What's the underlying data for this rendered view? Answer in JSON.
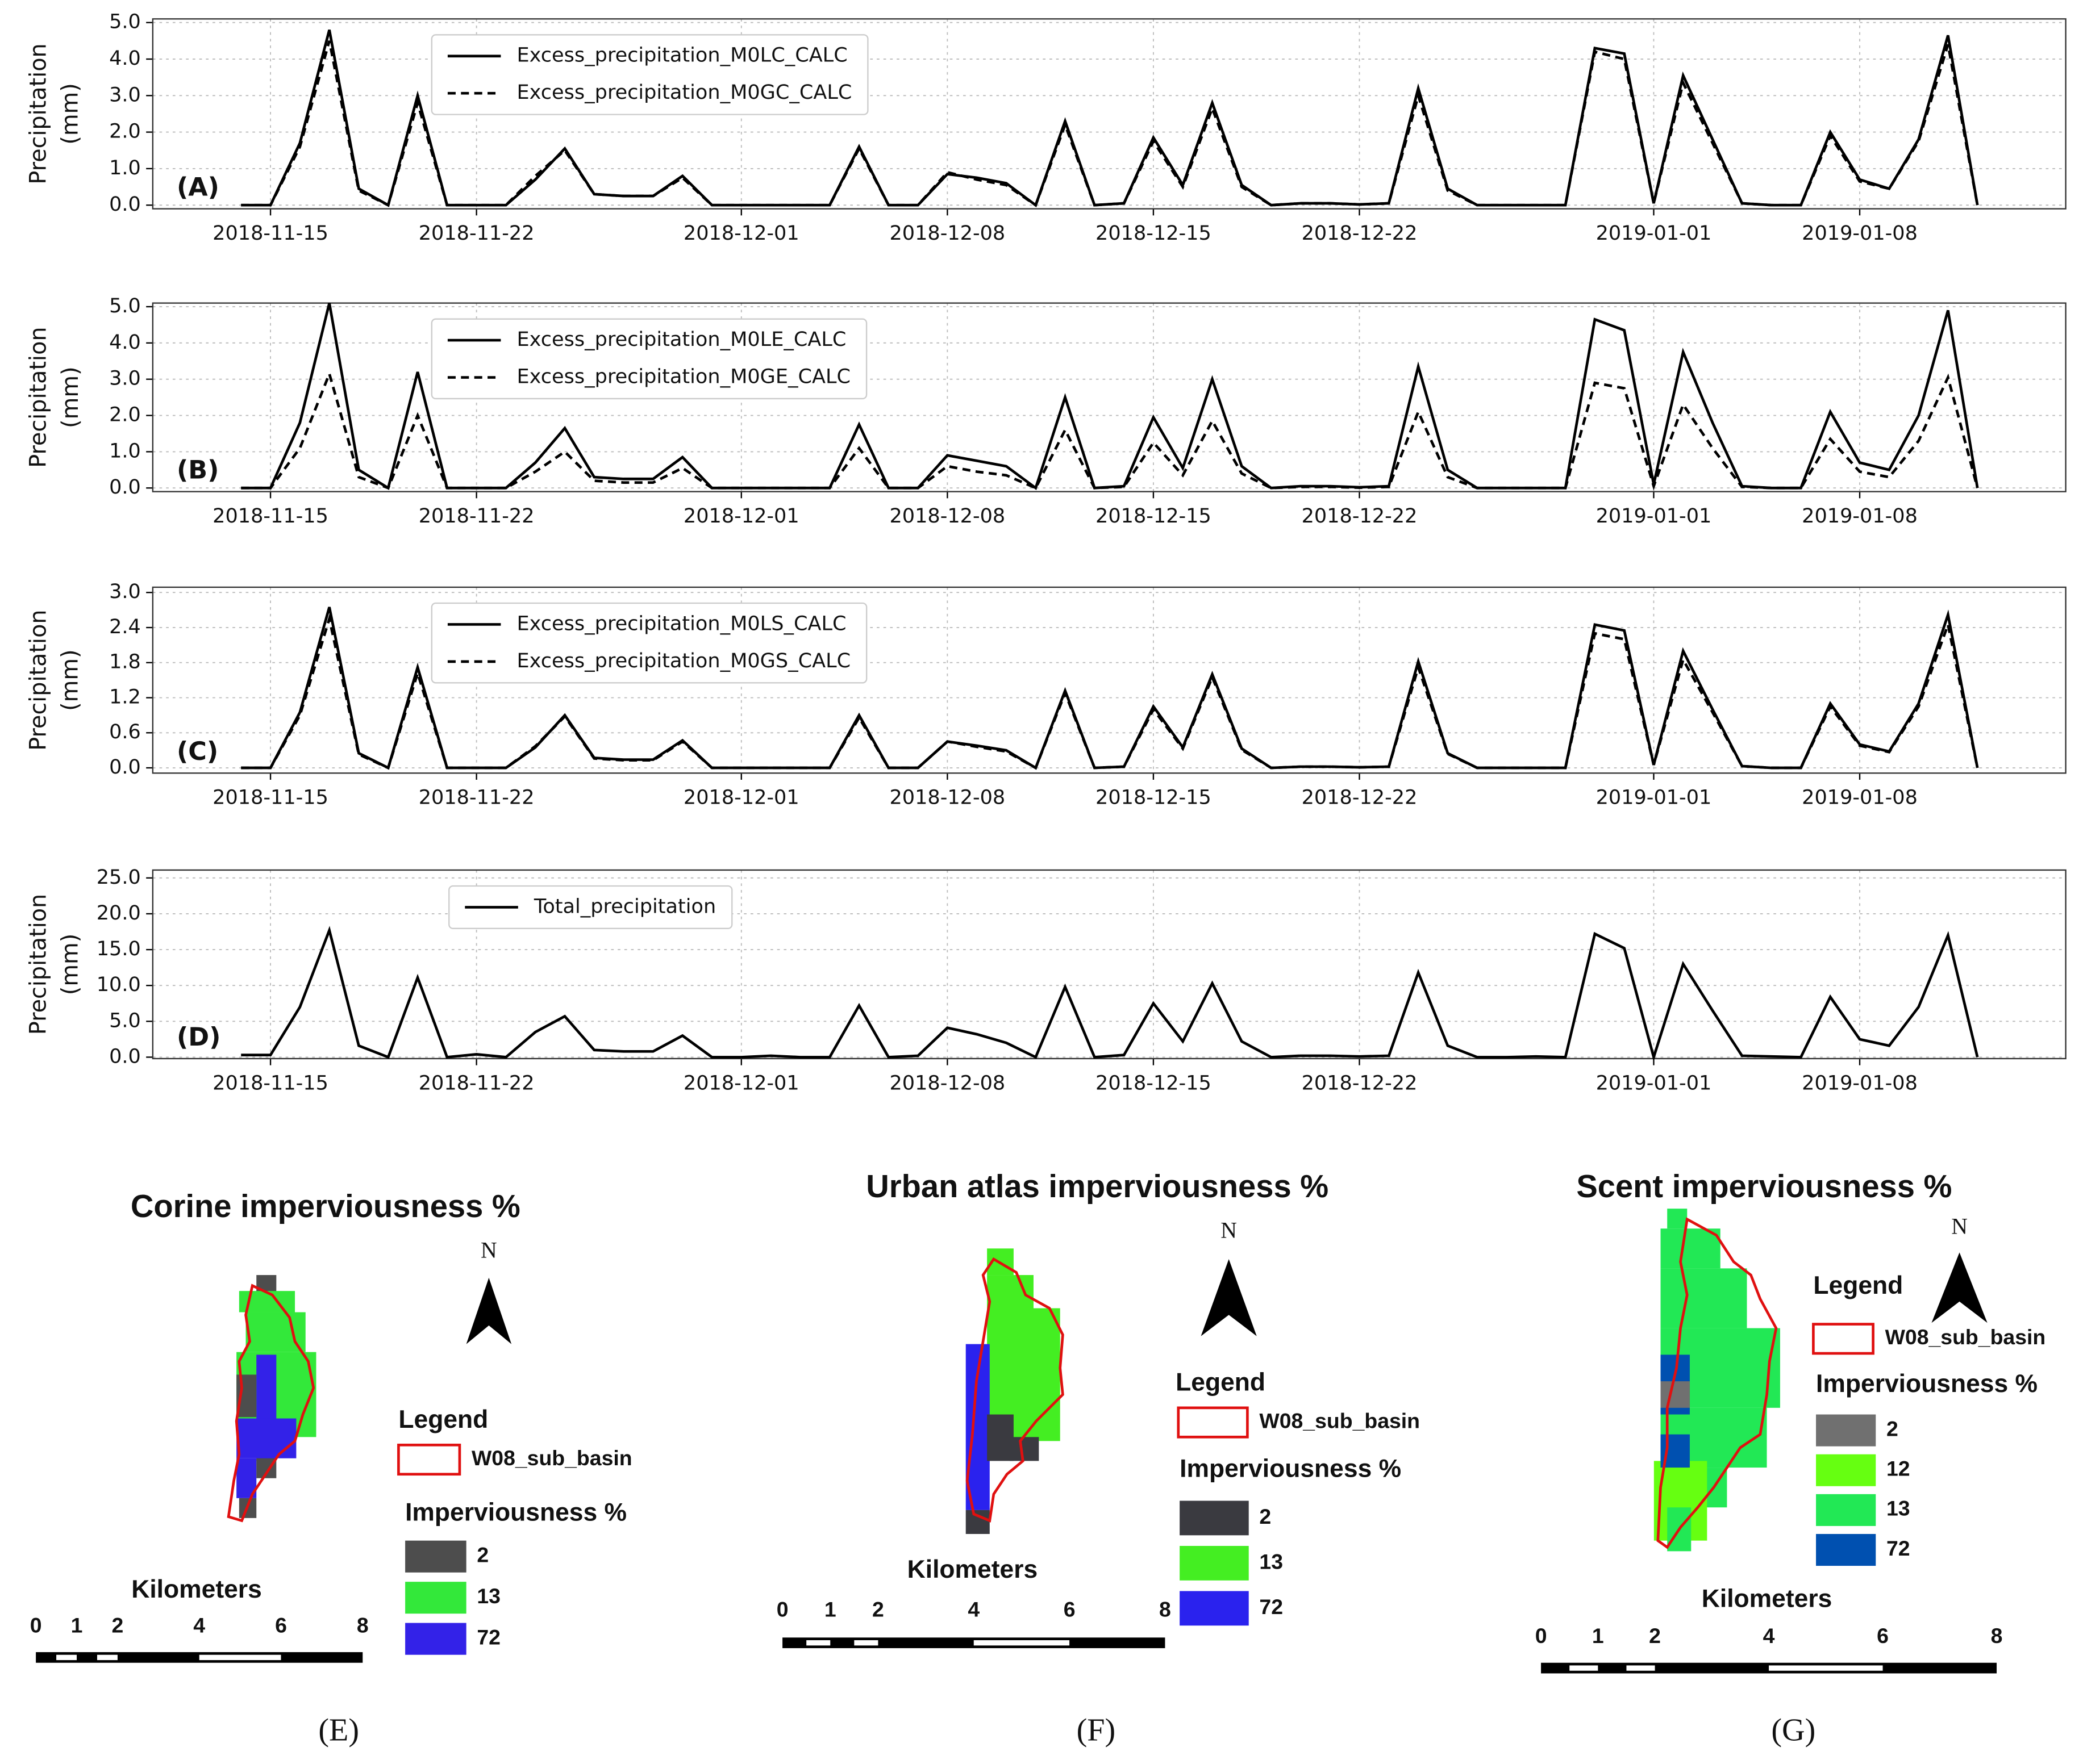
{
  "chart_data": [
    {
      "type": "line",
      "panel": "(A)",
      "ylabel": [
        "Precipitation",
        "(mm)"
      ],
      "grid": true,
      "legend": "upper left",
      "x": [
        "2018-11-14",
        "2018-11-15",
        "2018-11-16",
        "2018-11-17",
        "2018-11-18",
        "2018-11-19",
        "2018-11-20",
        "2018-11-21",
        "2018-11-22",
        "2018-11-23",
        "2018-11-24",
        "2018-11-25",
        "2018-11-26",
        "2018-11-27",
        "2018-11-28",
        "2018-11-29",
        "2018-11-30",
        "2018-12-01",
        "2018-12-02",
        "2018-12-03",
        "2018-12-04",
        "2018-12-05",
        "2018-12-06",
        "2018-12-07",
        "2018-12-08",
        "2018-12-09",
        "2018-12-10",
        "2018-12-11",
        "2018-12-12",
        "2018-12-13",
        "2018-12-14",
        "2018-12-15",
        "2018-12-16",
        "2018-12-17",
        "2018-12-18",
        "2018-12-19",
        "2018-12-20",
        "2018-12-21",
        "2018-12-22",
        "2018-12-23",
        "2018-12-24",
        "2018-12-25",
        "2018-12-26",
        "2018-12-27",
        "2018-12-28",
        "2018-12-29",
        "2018-12-30",
        "2018-12-31",
        "2019-01-01",
        "2019-01-02",
        "2019-01-03",
        "2019-01-04",
        "2019-01-05",
        "2019-01-06",
        "2019-01-07",
        "2019-01-08",
        "2019-01-09",
        "2019-01-10",
        "2019-01-11",
        "2019-01-12"
      ],
      "xlim": [
        "2018-11-11",
        "2019-01-15"
      ],
      "xticks": [
        "2018-11-15",
        "2018-11-22",
        "2018-12-01",
        "2018-12-08",
        "2018-12-15",
        "2018-12-22",
        "2019-01-01",
        "2019-01-08"
      ],
      "ylim": [
        -0.1,
        5.1
      ],
      "yticks": [
        {
          "value": 0,
          "label": "0.0"
        },
        {
          "value": 1,
          "label": "1.0"
        },
        {
          "value": 2,
          "label": "2.0"
        },
        {
          "value": 3,
          "label": "3.0"
        },
        {
          "value": 4,
          "label": "4.0"
        },
        {
          "value": 5,
          "label": "5.0"
        }
      ],
      "series": [
        {
          "name": "Excess_precipitation_M0LC_CALC",
          "color": "#000000",
          "style": "solid",
          "values": [
            0,
            0,
            1.7,
            4.8,
            0.45,
            0,
            3.0,
            0,
            0,
            0,
            0.7,
            1.55,
            0.3,
            0.25,
            0.25,
            0.8,
            0,
            0,
            0,
            0,
            0,
            1.6,
            0,
            0,
            0.85,
            0.75,
            0.6,
            0,
            2.3,
            0,
            0.05,
            1.85,
            0.55,
            2.8,
            0.55,
            0,
            0.05,
            0.05,
            0.02,
            0.05,
            3.2,
            0.45,
            0,
            0,
            0,
            0,
            4.3,
            4.15,
            0.05,
            3.55,
            1.8,
            0.05,
            0,
            0,
            2.0,
            0.7,
            0.45,
            1.8,
            4.65,
            0
          ]
        },
        {
          "name": "Excess_precipitation_M0GC_CALC",
          "color": "#000000",
          "style": "dashed",
          "values": [
            0,
            0,
            1.6,
            4.5,
            0.4,
            0,
            2.8,
            0,
            0,
            0,
            0.8,
            1.5,
            0.3,
            0.25,
            0.25,
            0.75,
            0,
            0,
            0,
            0,
            0,
            1.55,
            0,
            0,
            0.9,
            0.7,
            0.55,
            0,
            2.2,
            0,
            0.05,
            1.75,
            0.5,
            2.65,
            0.5,
            0,
            0.05,
            0.05,
            0.02,
            0.05,
            3.0,
            0.4,
            0,
            0,
            0,
            0,
            4.2,
            4.0,
            0.05,
            3.35,
            1.7,
            0.05,
            0,
            0,
            1.9,
            0.65,
            0.45,
            1.75,
            4.4,
            0
          ]
        }
      ]
    },
    {
      "type": "line",
      "panel": "(B)",
      "ylabel": [
        "Precipitation",
        "(mm)"
      ],
      "grid": true,
      "legend": "upper left",
      "x": [
        "2018-11-14",
        "2018-11-15",
        "2018-11-16",
        "2018-11-17",
        "2018-11-18",
        "2018-11-19",
        "2018-11-20",
        "2018-11-21",
        "2018-11-22",
        "2018-11-23",
        "2018-11-24",
        "2018-11-25",
        "2018-11-26",
        "2018-11-27",
        "2018-11-28",
        "2018-11-29",
        "2018-11-30",
        "2018-12-01",
        "2018-12-02",
        "2018-12-03",
        "2018-12-04",
        "2018-12-05",
        "2018-12-06",
        "2018-12-07",
        "2018-12-08",
        "2018-12-09",
        "2018-12-10",
        "2018-12-11",
        "2018-12-12",
        "2018-12-13",
        "2018-12-14",
        "2018-12-15",
        "2018-12-16",
        "2018-12-17",
        "2018-12-18",
        "2018-12-19",
        "2018-12-20",
        "2018-12-21",
        "2018-12-22",
        "2018-12-23",
        "2018-12-24",
        "2018-12-25",
        "2018-12-26",
        "2018-12-27",
        "2018-12-28",
        "2018-12-29",
        "2018-12-30",
        "2018-12-31",
        "2019-01-01",
        "2019-01-02",
        "2019-01-03",
        "2019-01-04",
        "2019-01-05",
        "2019-01-06",
        "2019-01-07",
        "2019-01-08",
        "2019-01-09",
        "2019-01-10",
        "2019-01-11",
        "2019-01-12"
      ],
      "xlim": [
        "2018-11-11",
        "2019-01-15"
      ],
      "xticks": [
        "2018-11-15",
        "2018-11-22",
        "2018-12-01",
        "2018-12-08",
        "2018-12-15",
        "2018-12-22",
        "2019-01-01",
        "2019-01-08"
      ],
      "ylim": [
        -0.1,
        5.1
      ],
      "yticks": [
        {
          "value": 0,
          "label": "0.0"
        },
        {
          "value": 1,
          "label": "1.0"
        },
        {
          "value": 2,
          "label": "2.0"
        },
        {
          "value": 3,
          "label": "3.0"
        },
        {
          "value": 4,
          "label": "4.0"
        },
        {
          "value": 5,
          "label": "5.0"
        }
      ],
      "series": [
        {
          "name": "Excess_precipitation_M0LE_CALC",
          "color": "#000000",
          "style": "solid",
          "values": [
            0,
            0,
            1.8,
            5.1,
            0.5,
            0,
            3.2,
            0,
            0,
            0,
            0.7,
            1.65,
            0.3,
            0.25,
            0.25,
            0.85,
            0,
            0,
            0,
            0,
            0,
            1.75,
            0,
            0,
            0.9,
            0.75,
            0.6,
            0,
            2.5,
            0,
            0.05,
            1.95,
            0.55,
            3.0,
            0.6,
            0,
            0.05,
            0.05,
            0.02,
            0.05,
            3.35,
            0.5,
            0,
            0,
            0,
            0,
            4.65,
            4.35,
            0.1,
            3.75,
            1.8,
            0.05,
            0,
            0,
            2.1,
            0.7,
            0.5,
            2.0,
            4.9,
            0
          ]
        },
        {
          "name": "Excess_precipitation_M0GE_CALC",
          "color": "#000000",
          "style": "dashed",
          "values": [
            0,
            0,
            1.1,
            3.15,
            0.3,
            0,
            2.0,
            0,
            0,
            0,
            0.45,
            1.0,
            0.2,
            0.15,
            0.15,
            0.55,
            0,
            0,
            0,
            0,
            0,
            1.1,
            0,
            0,
            0.6,
            0.45,
            0.35,
            0,
            1.6,
            0,
            0.03,
            1.25,
            0.35,
            1.85,
            0.4,
            0,
            0.03,
            0.03,
            0.01,
            0.03,
            2.1,
            0.3,
            0,
            0,
            0,
            0,
            2.9,
            2.75,
            0.05,
            2.3,
            1.1,
            0.03,
            0,
            0,
            1.35,
            0.45,
            0.3,
            1.3,
            3.05,
            0
          ]
        }
      ]
    },
    {
      "type": "line",
      "panel": "(C)",
      "ylabel": [
        "Precipitation",
        "(mm)"
      ],
      "grid": true,
      "legend": "upper left",
      "x": [
        "2018-11-14",
        "2018-11-15",
        "2018-11-16",
        "2018-11-17",
        "2018-11-18",
        "2018-11-19",
        "2018-11-20",
        "2018-11-21",
        "2018-11-22",
        "2018-11-23",
        "2018-11-24",
        "2018-11-25",
        "2018-11-26",
        "2018-11-27",
        "2018-11-28",
        "2018-11-29",
        "2018-11-30",
        "2018-12-01",
        "2018-12-02",
        "2018-12-03",
        "2018-12-04",
        "2018-12-05",
        "2018-12-06",
        "2018-12-07",
        "2018-12-08",
        "2018-12-09",
        "2018-12-10",
        "2018-12-11",
        "2018-12-12",
        "2018-12-13",
        "2018-12-14",
        "2018-12-15",
        "2018-12-16",
        "2018-12-17",
        "2018-12-18",
        "2018-12-19",
        "2018-12-20",
        "2018-12-21",
        "2018-12-22",
        "2018-12-23",
        "2018-12-24",
        "2018-12-25",
        "2018-12-26",
        "2018-12-27",
        "2018-12-28",
        "2018-12-29",
        "2018-12-30",
        "2018-12-31",
        "2019-01-01",
        "2019-01-02",
        "2019-01-03",
        "2019-01-04",
        "2019-01-05",
        "2019-01-06",
        "2019-01-07",
        "2019-01-08",
        "2019-01-09",
        "2019-01-10",
        "2019-01-11",
        "2019-01-12"
      ],
      "xlim": [
        "2018-11-11",
        "2019-01-15"
      ],
      "xticks": [
        "2018-11-15",
        "2018-11-22",
        "2018-12-01",
        "2018-12-08",
        "2018-12-15",
        "2018-12-22",
        "2019-01-01",
        "2019-01-08"
      ],
      "ylim": [
        -0.09,
        3.09
      ],
      "yticks": [
        {
          "value": 0,
          "label": "0.0"
        },
        0.6,
        1.2,
        1.8,
        2.4,
        {
          "value": 3,
          "label": "3.0"
        }
      ],
      "series": [
        {
          "name": "Excess_precipitation_M0LS_CALC",
          "color": "#000000",
          "style": "solid",
          "values": [
            0,
            0,
            0.95,
            2.75,
            0.25,
            0,
            1.72,
            0,
            0,
            0,
            0.35,
            0.9,
            0.17,
            0.14,
            0.14,
            0.47,
            0,
            0,
            0,
            0,
            0,
            0.9,
            0,
            0,
            0.45,
            0.38,
            0.3,
            0,
            1.32,
            0,
            0.02,
            1.05,
            0.35,
            1.6,
            0.33,
            0,
            0.02,
            0.02,
            0.01,
            0.02,
            1.82,
            0.25,
            0,
            0,
            0,
            0,
            2.45,
            2.35,
            0.05,
            2.0,
            1.0,
            0.03,
            0,
            0,
            1.1,
            0.4,
            0.28,
            1.1,
            2.62,
            0
          ]
        },
        {
          "name": "Excess_precipitation_M0GS_CALC",
          "color": "#000000",
          "style": "dashed",
          "values": [
            0,
            0,
            0.9,
            2.55,
            0.23,
            0,
            1.62,
            0,
            0,
            0,
            0.37,
            0.88,
            0.16,
            0.13,
            0.13,
            0.45,
            0,
            0,
            0,
            0,
            0,
            0.86,
            0,
            0,
            0.45,
            0.36,
            0.28,
            0,
            1.28,
            0,
            0.02,
            1.0,
            0.33,
            1.55,
            0.31,
            0,
            0.02,
            0.02,
            0.01,
            0.02,
            1.72,
            0.24,
            0,
            0,
            0,
            0,
            2.3,
            2.2,
            0.05,
            1.85,
            0.95,
            0.03,
            0,
            0,
            1.05,
            0.38,
            0.27,
            1.05,
            2.45,
            0
          ]
        }
      ]
    },
    {
      "type": "line",
      "panel": "(D)",
      "ylabel": [
        "Precipitation",
        "(mm)"
      ],
      "grid": true,
      "legend": "upper left",
      "x": [
        "2018-11-14",
        "2018-11-15",
        "2018-11-16",
        "2018-11-17",
        "2018-11-18",
        "2018-11-19",
        "2018-11-20",
        "2018-11-21",
        "2018-11-22",
        "2018-11-23",
        "2018-11-24",
        "2018-11-25",
        "2018-11-26",
        "2018-11-27",
        "2018-11-28",
        "2018-11-29",
        "2018-11-30",
        "2018-12-01",
        "2018-12-02",
        "2018-12-03",
        "2018-12-04",
        "2018-12-05",
        "2018-12-06",
        "2018-12-07",
        "2018-12-08",
        "2018-12-09",
        "2018-12-10",
        "2018-12-11",
        "2018-12-12",
        "2018-12-13",
        "2018-12-14",
        "2018-12-15",
        "2018-12-16",
        "2018-12-17",
        "2018-12-18",
        "2018-12-19",
        "2018-12-20",
        "2018-12-21",
        "2018-12-22",
        "2018-12-23",
        "2018-12-24",
        "2018-12-25",
        "2018-12-26",
        "2018-12-27",
        "2018-12-28",
        "2018-12-29",
        "2018-12-30",
        "2018-12-31",
        "2019-01-01",
        "2019-01-02",
        "2019-01-03",
        "2019-01-04",
        "2019-01-05",
        "2019-01-06",
        "2019-01-07",
        "2019-01-08",
        "2019-01-09",
        "2019-01-10",
        "2019-01-11",
        "2019-01-12"
      ],
      "xlim": [
        "2018-11-11",
        "2019-01-15"
      ],
      "xticks": [
        "2018-11-15",
        "2018-11-22",
        "2018-12-01",
        "2018-12-08",
        "2018-12-15",
        "2018-12-22",
        "2019-01-01",
        "2019-01-08"
      ],
      "ylim": [
        -0.2,
        26.1
      ],
      "yticks": [
        {
          "value": 0,
          "label": "0.0"
        },
        {
          "value": 5,
          "label": "5.0"
        },
        {
          "value": 10,
          "label": "10.0"
        },
        {
          "value": 15,
          "label": "15.0"
        },
        {
          "value": 20,
          "label": "20.0"
        },
        {
          "value": 25,
          "label": "25.0"
        }
      ],
      "series": [
        {
          "name": "Total_precipitation",
          "color": "#000000",
          "style": "solid",
          "values": [
            0.3,
            0.3,
            7.0,
            17.7,
            1.6,
            0,
            11.1,
            0,
            0.4,
            0,
            3.5,
            5.7,
            1.0,
            0.8,
            0.8,
            3.0,
            0,
            0,
            0.2,
            0,
            0,
            7.2,
            0,
            0.2,
            4.1,
            3.2,
            2.0,
            0,
            9.8,
            0,
            0.3,
            7.5,
            2.2,
            10.3,
            2.2,
            0,
            0.2,
            0.2,
            0.1,
            0.2,
            11.8,
            1.6,
            0,
            0,
            0.1,
            0,
            17.2,
            15.2,
            0,
            13.0,
            6.5,
            0.2,
            0.1,
            0,
            8.4,
            2.5,
            1.6,
            7.0,
            17.0,
            0
          ]
        }
      ]
    }
  ],
  "maps": [
    {
      "title": "Corine imperviousness %",
      "north": "N",
      "legend_title": "Legend",
      "basin": "W08_sub_basin",
      "class_title": "Imperviousness %",
      "classes": [
        {
          "label": "2",
          "color": "#4d4d4d"
        },
        {
          "label": "13",
          "color": "#33e83a"
        },
        {
          "label": "72",
          "color": "#3322e8"
        }
      ],
      "scale_title": "Kilometers",
      "scale_ticks": [
        0,
        1,
        2,
        4,
        6,
        8
      ],
      "panel": "(E)"
    },
    {
      "title": "Urban atlas imperviousness %",
      "north": "N",
      "legend_title": "Legend",
      "basin": "W08_sub_basin",
      "class_title": "Imperviousness %",
      "classes": [
        {
          "label": "2",
          "color": "#3a3a40"
        },
        {
          "label": "13",
          "color": "#44ee22"
        },
        {
          "label": "72",
          "color": "#2a22ee"
        }
      ],
      "scale_title": "Kilometers",
      "scale_ticks": [
        0,
        1,
        2,
        4,
        6,
        8
      ],
      "panel": "(F)"
    },
    {
      "title": "Scent imperviousness %",
      "north": "N",
      "legend_title": "Legend",
      "basin": "W08_sub_basin",
      "class_title": "Imperviousness %",
      "classes": [
        {
          "label": "2",
          "color": "#707070"
        },
        {
          "label": "12",
          "color": "#66ff11"
        },
        {
          "label": "13",
          "color": "#22e855"
        },
        {
          "label": "72",
          "color": "#0050b0"
        }
      ],
      "scale_title": "Kilometers",
      "scale_ticks": [
        0,
        1,
        2,
        4,
        6,
        8
      ],
      "panel": "(G)"
    }
  ]
}
